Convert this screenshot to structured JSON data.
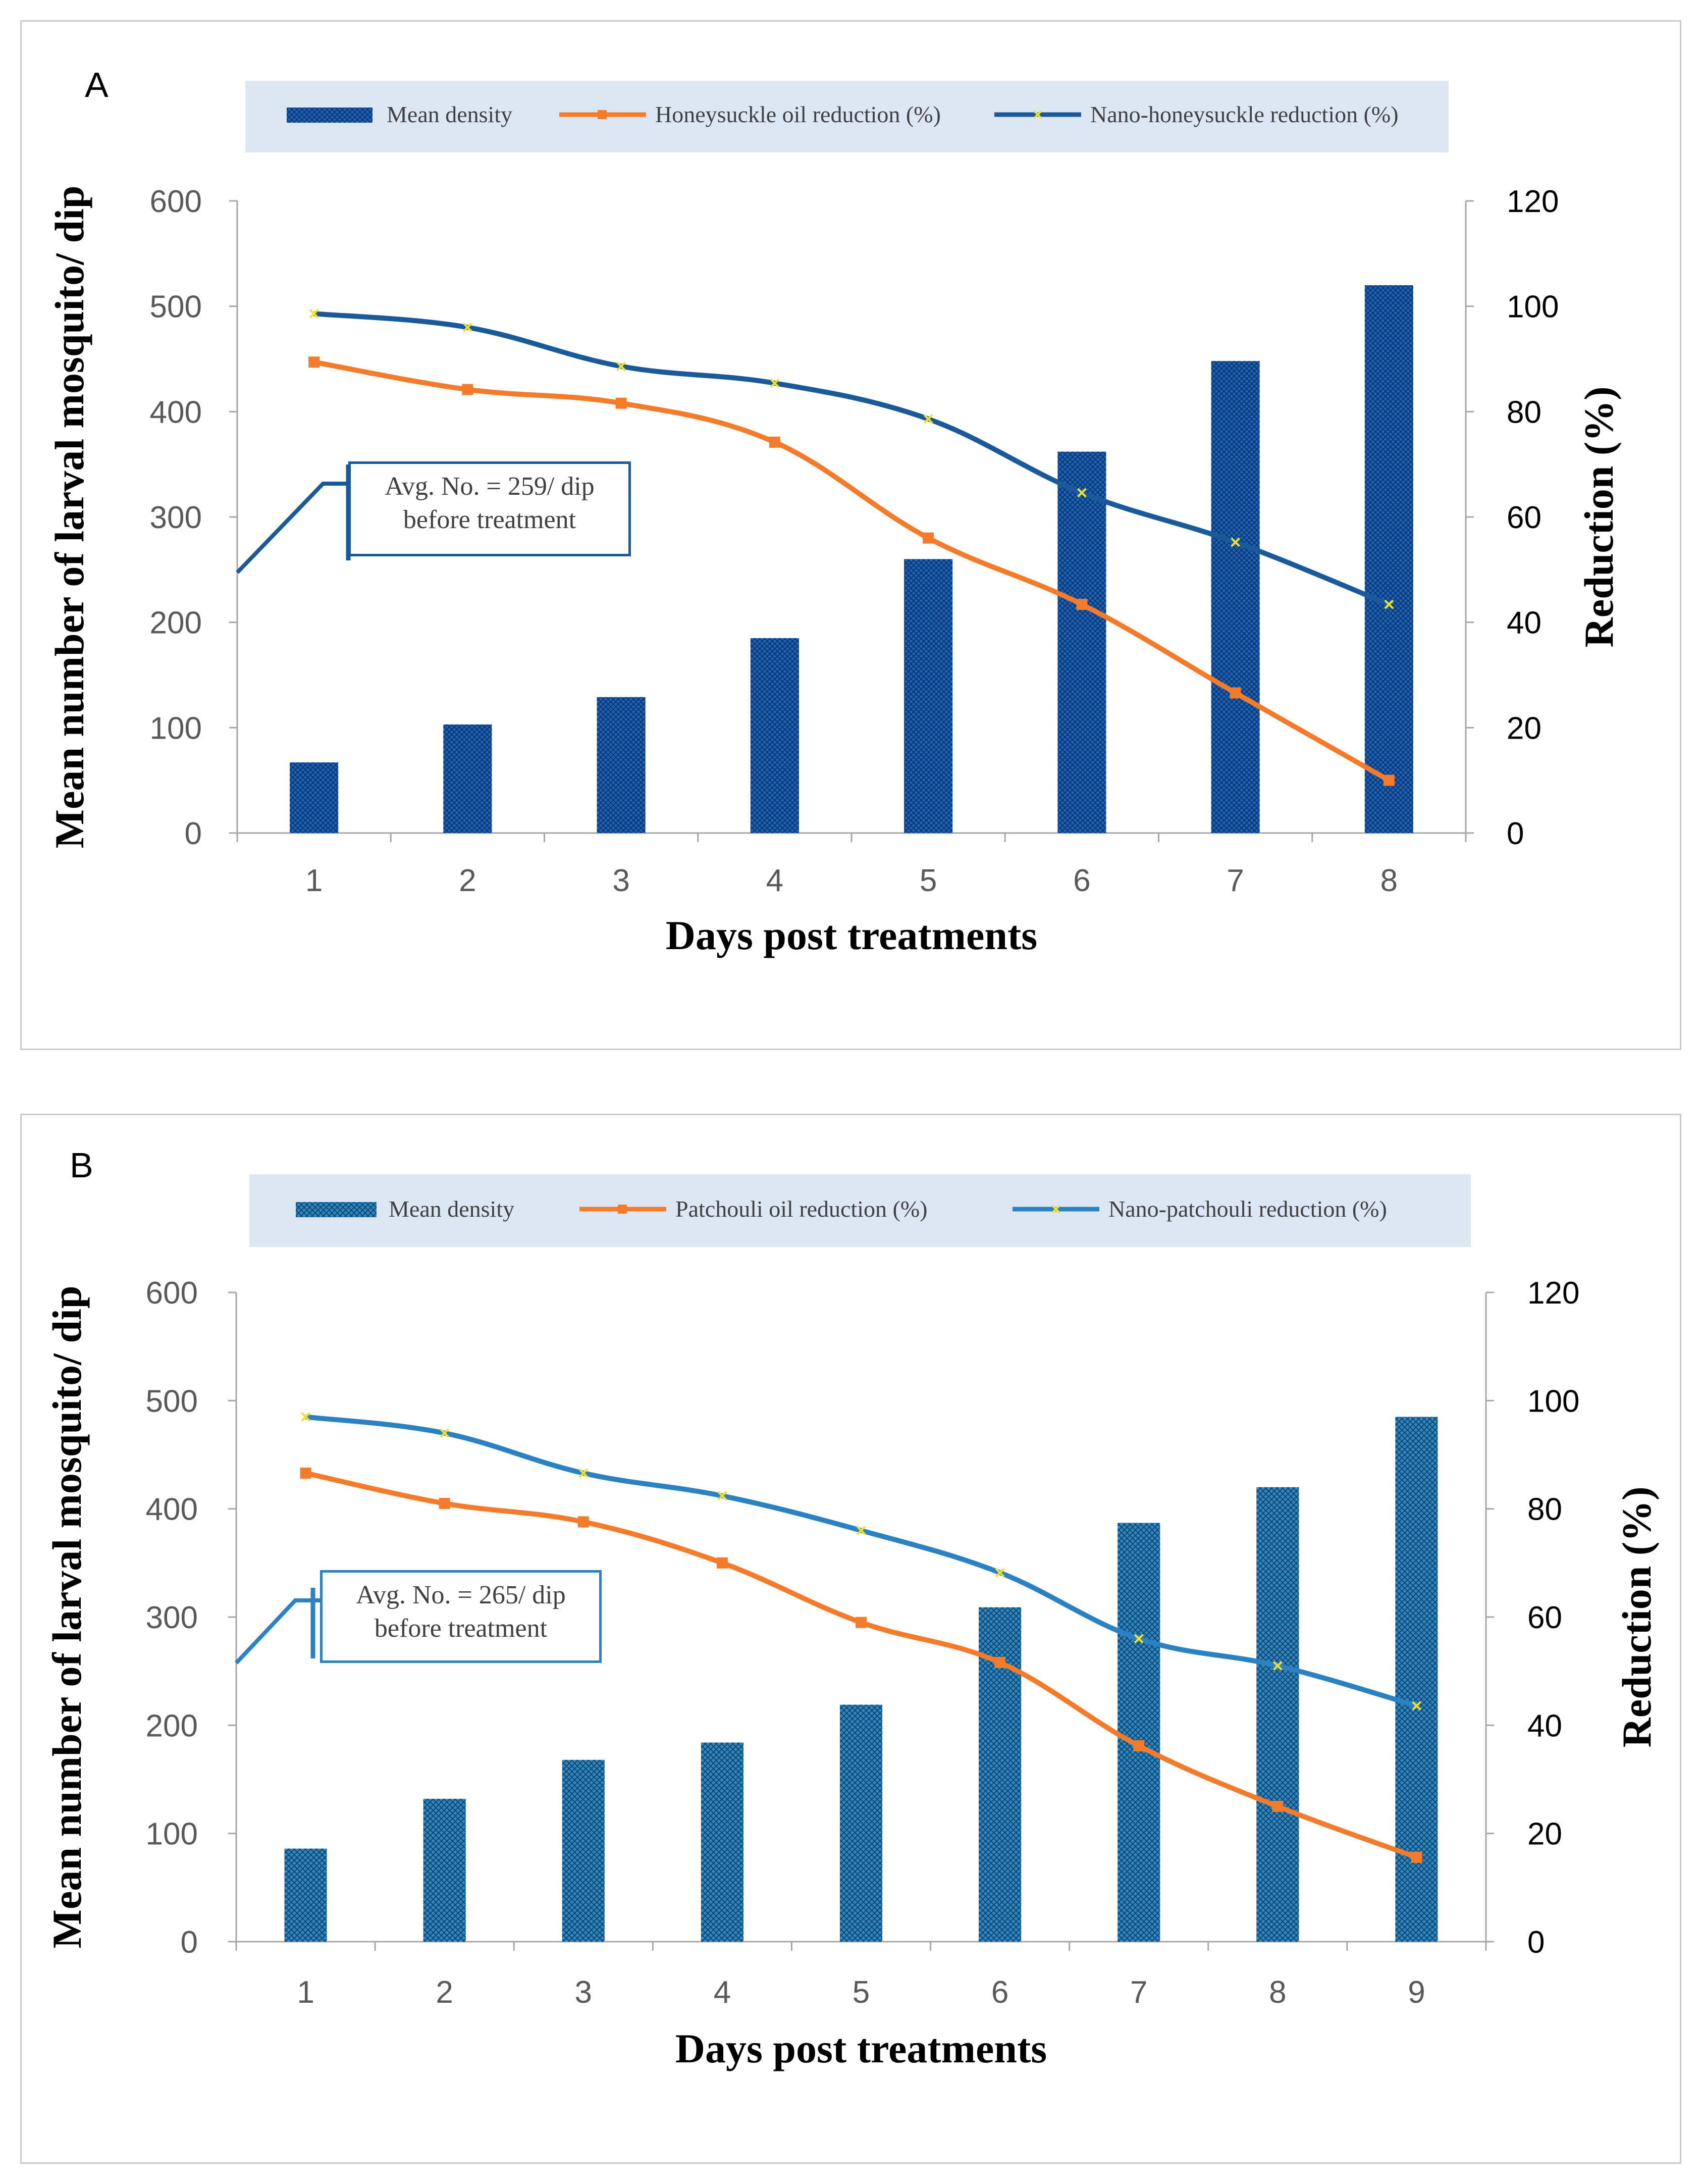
{
  "chart_data": [
    {
      "panel_label": "A",
      "type": "bar+line",
      "categories": [
        "1",
        "2",
        "3",
        "4",
        "5",
        "6",
        "7",
        "8"
      ],
      "xlabel": "Days post treatments",
      "ylabel": "Mean number of larval mosquito/ dip",
      "y2label": "Reduction (%)",
      "ylim": [
        0,
        600
      ],
      "y2lim": [
        0,
        120
      ],
      "yticks": [
        "0",
        "100",
        "200",
        "300",
        "400",
        "500",
        "600"
      ],
      "y2ticks": [
        "0",
        "20",
        "40",
        "60",
        "80",
        "100",
        "120"
      ],
      "legend_position": "top",
      "bars": {
        "name": "Mean density",
        "values": [
          67,
          103,
          129,
          185,
          260,
          362,
          448,
          520
        ],
        "color": "#1c62b5"
      },
      "series": [
        {
          "name": "Honeysuckle oil reduction (%)",
          "axis": "right",
          "marker": "square",
          "color": "#f47b2a",
          "values": [
            89.4,
            84.2,
            81.6,
            74.2,
            56,
            43.4,
            26.6,
            10
          ]
        },
        {
          "name": "Nano-honeysuckle reduction (%)",
          "axis": "right",
          "marker": "x",
          "color": "#1a5a9a",
          "values": [
            98.6,
            96,
            88.6,
            85.4,
            78.6,
            64.6,
            55.2,
            43.4
          ]
        }
      ],
      "annotation": {
        "line1": "Avg. No. = 259/ dip",
        "line2": "before treatment",
        "color": "#1a5a9a"
      }
    },
    {
      "panel_label": "B",
      "type": "bar+line",
      "categories": [
        "1",
        "2",
        "3",
        "4",
        "5",
        "6",
        "7",
        "8",
        "9"
      ],
      "xlabel": "Days post treatments",
      "ylabel": "Mean number of larval mosquito/ dip",
      "y2label": "Reduction (%)",
      "ylim": [
        0,
        600
      ],
      "y2lim": [
        0,
        120
      ],
      "yticks": [
        "0",
        "100",
        "200",
        "300",
        "400",
        "500",
        "600"
      ],
      "y2ticks": [
        "0",
        "20",
        "40",
        "60",
        "80",
        "100",
        "120"
      ],
      "legend_position": "top",
      "bars": {
        "name": "Mean density",
        "values": [
          86,
          132,
          168,
          184,
          219,
          309,
          387,
          420,
          485
        ],
        "color": "#2d86bf"
      },
      "series": [
        {
          "name": "Patchouli oil reduction (%)",
          "axis": "right",
          "marker": "square",
          "color": "#f47b2a",
          "values": [
            86.6,
            81,
            77.6,
            70,
            59,
            51.6,
            36.2,
            25,
            15.6
          ]
        },
        {
          "name": "Nano-patchouli  reduction (%)",
          "axis": "right",
          "marker": "x",
          "color": "#2a82c3",
          "values": [
            97,
            94,
            86.6,
            82.4,
            76,
            68.2,
            56,
            51,
            43.6
          ]
        }
      ],
      "annotation": {
        "line1": "Avg. No. = 265/ dip",
        "line2": "before treatment",
        "color": "#2a82c3"
      }
    }
  ]
}
